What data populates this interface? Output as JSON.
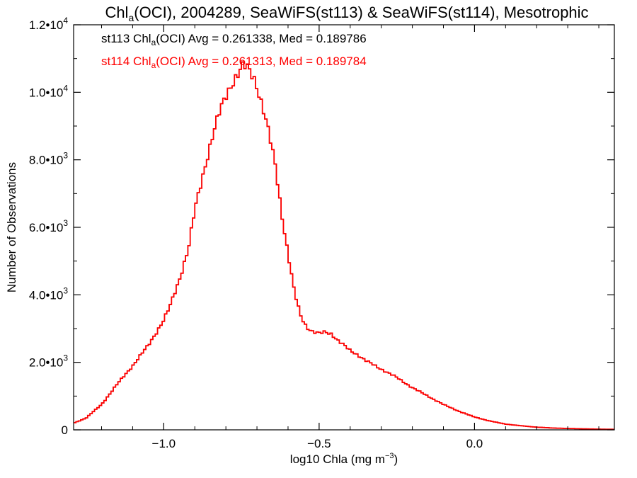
{
  "chart_data": {
    "type": "line",
    "title": {
      "pre": "Chl",
      "sub": "a",
      "post": "(OCI), 2004289, SeaWiFS(st113) & SeaWiFS(st114), Mesotrophic"
    },
    "xlabel": {
      "pre": "log10 Chla (mg m",
      "sup": "−3",
      "post": ")"
    },
    "ylabel": "Number of Observations",
    "xlim": [
      -1.29,
      0.45
    ],
    "ylim": [
      0,
      12000
    ],
    "x_ticks": [
      {
        "value": -1.0,
        "label": "−1.0"
      },
      {
        "value": -0.5,
        "label": "−0.5"
      },
      {
        "value": 0.0,
        "label": "0.0"
      }
    ],
    "y_ticks": [
      {
        "value": 0,
        "mant": "0",
        "exp": ""
      },
      {
        "value": 2000,
        "mant": "2.0•10",
        "exp": "3"
      },
      {
        "value": 4000,
        "mant": "4.0•10",
        "exp": "3"
      },
      {
        "value": 6000,
        "mant": "6.0•10",
        "exp": "3"
      },
      {
        "value": 8000,
        "mant": "8.0•10",
        "exp": "3"
      },
      {
        "value": 10000,
        "mant": "1.0•10",
        "exp": "4"
      },
      {
        "value": 12000,
        "mant": "1.2•10",
        "exp": "4"
      }
    ],
    "grid": false,
    "legend_placement": "top-left",
    "stats": [
      {
        "series": "st113",
        "text_pre": "st113 Chl",
        "text_sub": "a",
        "text_post": "(OCI) Avg = 0.261338, Med = 0.189786",
        "color": "#000000"
      },
      {
        "series": "st114",
        "text_pre": "st114 Chl",
        "text_sub": "a",
        "text_post": "(OCI) Avg = 0.261313, Med = 0.189784",
        "color": "#ff0000"
      }
    ],
    "step": "histogram",
    "series": [
      {
        "name": "st113",
        "color": "#000000",
        "x": [
          -1.29,
          -1.25,
          -1.2,
          -1.15,
          -1.1,
          -1.05,
          -1.0,
          -0.98,
          -0.95,
          -0.92,
          -0.9,
          -0.88,
          -0.86,
          -0.84,
          -0.82,
          -0.8,
          -0.78,
          -0.76,
          -0.75,
          -0.74,
          -0.73,
          -0.72,
          -0.71,
          -0.7,
          -0.68,
          -0.66,
          -0.64,
          -0.62,
          -0.6,
          -0.58,
          -0.56,
          -0.54,
          -0.52,
          -0.5,
          -0.48,
          -0.46,
          -0.44,
          -0.42,
          -0.4,
          -0.38,
          -0.35,
          -0.3,
          -0.25,
          -0.2,
          -0.15,
          -0.1,
          -0.05,
          0.0,
          0.05,
          0.1,
          0.15,
          0.2,
          0.25,
          0.3,
          0.35,
          0.4,
          0.45
        ],
        "y": [
          200,
          350,
          750,
          1350,
          1900,
          2500,
          3250,
          3650,
          4450,
          5400,
          6500,
          7300,
          8100,
          8800,
          9400,
          9900,
          10300,
          10550,
          10700,
          10750,
          10700,
          10600,
          10450,
          10200,
          9500,
          8700,
          7800,
          6400,
          5200,
          4100,
          3400,
          3050,
          2900,
          2850,
          2900,
          2850,
          2650,
          2500,
          2350,
          2250,
          2050,
          1800,
          1550,
          1250,
          1000,
          750,
          550,
          380,
          260,
          170,
          120,
          80,
          55,
          40,
          30,
          20,
          15
        ]
      },
      {
        "name": "st114",
        "color": "#ff0000",
        "x": [
          -1.29,
          -1.25,
          -1.2,
          -1.15,
          -1.1,
          -1.05,
          -1.0,
          -0.98,
          -0.95,
          -0.92,
          -0.9,
          -0.88,
          -0.86,
          -0.84,
          -0.82,
          -0.8,
          -0.78,
          -0.76,
          -0.75,
          -0.74,
          -0.73,
          -0.72,
          -0.71,
          -0.7,
          -0.68,
          -0.66,
          -0.64,
          -0.62,
          -0.6,
          -0.58,
          -0.56,
          -0.54,
          -0.52,
          -0.5,
          -0.48,
          -0.46,
          -0.44,
          -0.42,
          -0.4,
          -0.38,
          -0.35,
          -0.3,
          -0.25,
          -0.2,
          -0.15,
          -0.1,
          -0.05,
          0.0,
          0.05,
          0.1,
          0.15,
          0.2,
          0.25,
          0.3,
          0.35,
          0.4,
          0.45
        ],
        "y": [
          200,
          350,
          750,
          1350,
          1900,
          2500,
          3250,
          3650,
          4450,
          5400,
          6500,
          7300,
          8100,
          8800,
          9400,
          9900,
          10300,
          10550,
          10700,
          10750,
          10700,
          10600,
          10450,
          10200,
          9500,
          8700,
          7800,
          6400,
          5200,
          4100,
          3400,
          3050,
          2900,
          2850,
          2900,
          2850,
          2650,
          2500,
          2350,
          2250,
          2050,
          1800,
          1550,
          1250,
          1000,
          750,
          550,
          380,
          260,
          170,
          120,
          80,
          55,
          40,
          30,
          20,
          15
        ]
      }
    ]
  }
}
